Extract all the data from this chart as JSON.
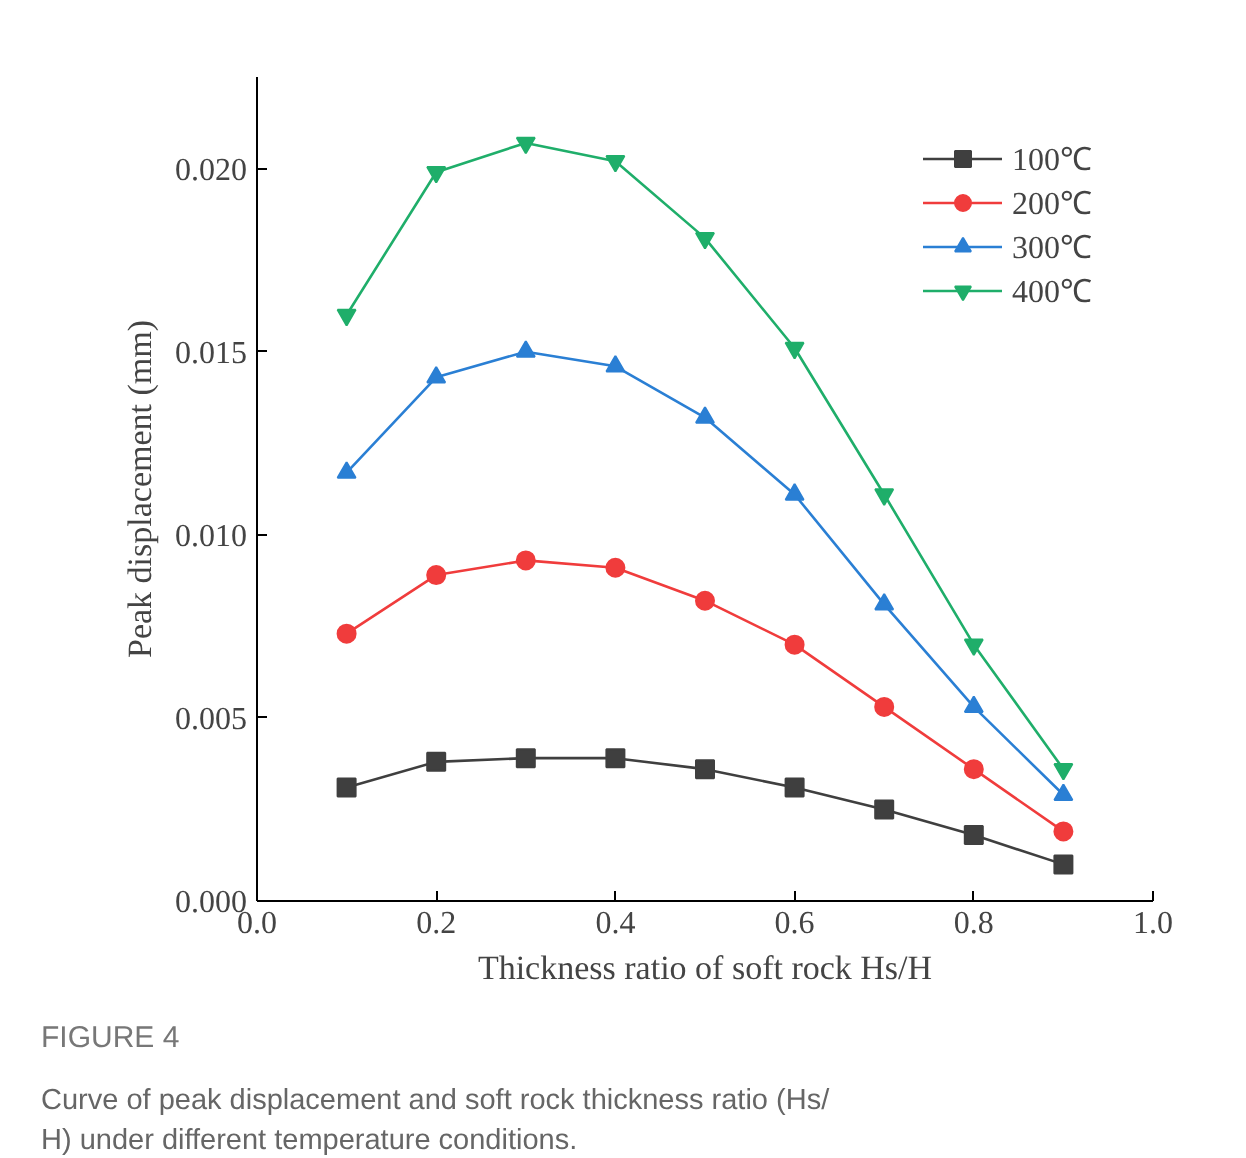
{
  "chart_data": {
    "type": "line",
    "xlabel": "Thickness ratio of soft rock Hs/H",
    "ylabel": "Peak displacement (mm)",
    "x": [
      0.1,
      0.2,
      0.3,
      0.4,
      0.5,
      0.6,
      0.7,
      0.8,
      0.9
    ],
    "series": [
      {
        "name": "100℃",
        "color": "#3f3f3f",
        "marker": "square",
        "values": [
          0.0031,
          0.0038,
          0.0039,
          0.0039,
          0.0036,
          0.0031,
          0.0025,
          0.0018,
          0.001
        ]
      },
      {
        "name": "200℃",
        "color": "#f03c3c",
        "marker": "circle",
        "values": [
          0.0073,
          0.0089,
          0.0093,
          0.0091,
          0.0082,
          0.007,
          0.0053,
          0.0036,
          0.0019
        ]
      },
      {
        "name": "300℃",
        "color": "#2a7fd4",
        "marker": "triangle",
        "values": [
          0.0117,
          0.0143,
          0.015,
          0.0146,
          0.0132,
          0.0111,
          0.0081,
          0.0053,
          0.0029
        ]
      },
      {
        "name": "400℃",
        "color": "#1fae6a",
        "marker": "triangle",
        "values": [
          0.016,
          0.0199,
          0.0207,
          0.0202,
          0.0181,
          0.0151,
          0.0111,
          0.007,
          0.0036
        ]
      }
    ],
    "xlim": [
      0.0,
      1.0
    ],
    "ylim": [
      0.0,
      0.0225
    ],
    "xticks": [
      {
        "value": 0.0,
        "label": "0.0"
      },
      {
        "value": 0.2,
        "label": "0.2"
      },
      {
        "value": 0.4,
        "label": "0.4"
      },
      {
        "value": 0.6,
        "label": "0.6"
      },
      {
        "value": 0.8,
        "label": "0.8"
      },
      {
        "value": 1.0,
        "label": "1.0"
      }
    ],
    "yticks": [
      {
        "value": 0.0,
        "label": "0.000"
      },
      {
        "value": 0.005,
        "label": "0.005"
      },
      {
        "value": 0.01,
        "label": "0.010"
      },
      {
        "value": 0.015,
        "label": "0.015"
      },
      {
        "value": 0.02,
        "label": "0.020"
      }
    ],
    "grid": false,
    "legend": "top right",
    "line_style": "solid",
    "annotations": [
      "FIGURE 4",
      "Curve of peak displacement and soft rock thickness ratio (Hs/",
      "H) under different temperature conditions."
    ]
  }
}
